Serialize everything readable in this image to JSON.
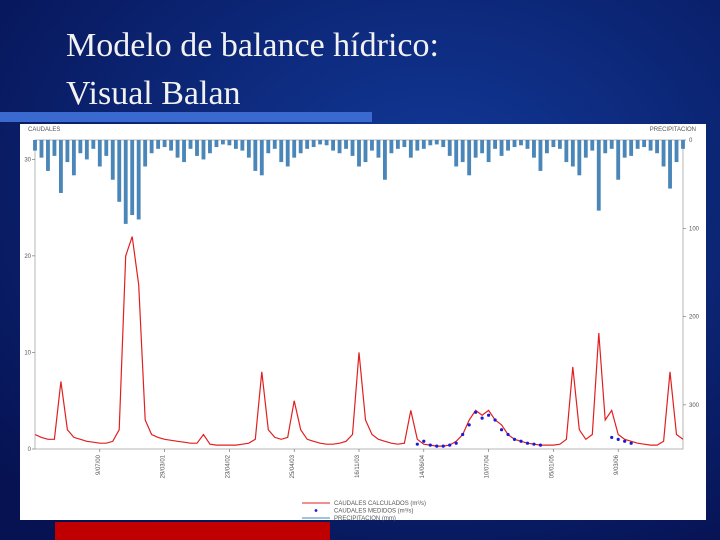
{
  "slide": {
    "title_lines": [
      "Modelo de balance hídrico:",
      "Visual Balan"
    ]
  },
  "chart_data": {
    "type": "hydrograph",
    "ylabel": "CAUDALES",
    "y2label": "PRECIPITACION",
    "x": [
      0,
      1,
      2,
      3,
      4,
      5,
      6,
      7,
      8,
      9,
      10,
      11,
      12,
      13,
      14,
      15,
      16,
      17,
      18,
      19,
      20,
      21,
      22,
      23,
      24,
      25,
      26,
      27,
      28,
      29,
      30,
      31,
      32,
      33,
      34,
      35,
      36,
      37,
      38,
      39,
      40,
      41,
      42,
      43,
      44,
      45,
      46,
      47,
      48,
      49,
      50,
      51,
      52,
      53,
      54,
      55,
      56,
      57,
      58,
      59,
      60,
      61,
      62,
      63,
      64,
      65,
      66,
      67,
      68,
      69,
      70,
      71,
      72,
      73,
      74,
      75,
      76,
      77,
      78,
      79,
      80,
      81,
      82,
      83,
      84,
      85,
      86,
      87,
      88,
      89,
      90,
      91,
      92,
      93,
      94,
      95,
      96,
      97,
      98,
      99,
      100
    ],
    "xlim": [
      0,
      100
    ],
    "xticks": [
      {
        "value": 10,
        "label": "9/07/00"
      },
      {
        "value": 20,
        "label": "29/03/01"
      },
      {
        "value": 30,
        "label": "23/04/02"
      },
      {
        "value": 40,
        "label": "25/04/03"
      },
      {
        "value": 50,
        "label": "16/11/03"
      },
      {
        "value": 60,
        "label": "14/06/04"
      },
      {
        "value": 70,
        "label": "10/07/04"
      },
      {
        "value": 80,
        "label": "05/01/05"
      },
      {
        "value": 90,
        "label": "9/03/06"
      }
    ],
    "ylim": [
      0,
      32
    ],
    "yticks": [
      0,
      10,
      20,
      30
    ],
    "y2lim": [
      0,
      350
    ],
    "y2ticks": [
      0,
      100,
      200,
      300
    ],
    "y2_inverted": true,
    "series": [
      {
        "name": "CAUDALES CALCULADOS (m³/s)",
        "color": "#e02020",
        "kind": "line",
        "values": [
          1.5,
          1.2,
          1.0,
          1.0,
          7.0,
          2.0,
          1.2,
          1.0,
          0.8,
          0.7,
          0.6,
          0.6,
          0.8,
          2.0,
          20.0,
          22.0,
          17.0,
          3.0,
          1.5,
          1.2,
          1.0,
          0.9,
          0.8,
          0.7,
          0.6,
          0.6,
          1.5,
          0.5,
          0.4,
          0.4,
          0.4,
          0.4,
          0.5,
          0.6,
          1.0,
          8.0,
          2.0,
          1.2,
          1.0,
          1.2,
          5.0,
          2.0,
          1.0,
          0.8,
          0.6,
          0.5,
          0.5,
          0.6,
          0.8,
          1.5,
          10.0,
          3.0,
          1.5,
          1.0,
          0.8,
          0.6,
          0.5,
          0.6,
          4.0,
          1.0,
          0.5,
          0.4,
          0.3,
          0.3,
          0.4,
          0.8,
          1.5,
          3.0,
          4.0,
          3.5,
          4.0,
          3.0,
          2.5,
          1.5,
          1.0,
          0.8,
          0.6,
          0.5,
          0.4,
          0.4,
          0.4,
          0.5,
          1.0,
          8.5,
          2.0,
          1.0,
          1.5,
          12.0,
          3.0,
          4.0,
          1.5,
          1.0,
          0.8,
          0.6,
          0.5,
          0.4,
          0.4,
          0.8,
          8.0,
          1.5,
          1.0
        ]
      },
      {
        "name": "CAUDALES MEDIDOS (m³/s)",
        "color": "#1a1ad8",
        "kind": "points",
        "x": [
          59,
          60,
          61,
          62,
          63,
          64,
          65,
          66,
          67,
          68,
          69,
          70,
          71,
          72,
          73,
          74,
          75,
          76,
          77,
          78,
          89,
          90,
          91,
          92
        ],
        "values": [
          0.5,
          0.8,
          0.4,
          0.3,
          0.3,
          0.4,
          0.6,
          1.5,
          2.5,
          3.8,
          3.2,
          3.5,
          3.0,
          2.0,
          1.5,
          1.0,
          0.8,
          0.6,
          0.5,
          0.4,
          1.2,
          1.0,
          0.8,
          0.6
        ]
      },
      {
        "name": "PRECIPITACION (mm)",
        "color": "#4a86b8",
        "kind": "bars",
        "axis": "y2",
        "values": [
          12,
          20,
          35,
          18,
          60,
          25,
          40,
          15,
          22,
          10,
          30,
          18,
          45,
          70,
          95,
          85,
          90,
          30,
          15,
          10,
          8,
          12,
          20,
          25,
          10,
          18,
          22,
          15,
          8,
          5,
          6,
          10,
          12,
          20,
          35,
          40,
          15,
          10,
          25,
          30,
          20,
          15,
          10,
          8,
          5,
          6,
          12,
          15,
          10,
          18,
          30,
          25,
          12,
          20,
          45,
          15,
          10,
          8,
          20,
          12,
          10,
          6,
          5,
          8,
          18,
          30,
          25,
          40,
          20,
          15,
          25,
          10,
          18,
          12,
          8,
          6,
          10,
          20,
          35,
          15,
          8,
          10,
          25,
          30,
          40,
          20,
          12,
          80,
          15,
          10,
          45,
          20,
          18,
          10,
          8,
          12,
          15,
          30,
          55,
          25,
          10
        ]
      }
    ]
  }
}
